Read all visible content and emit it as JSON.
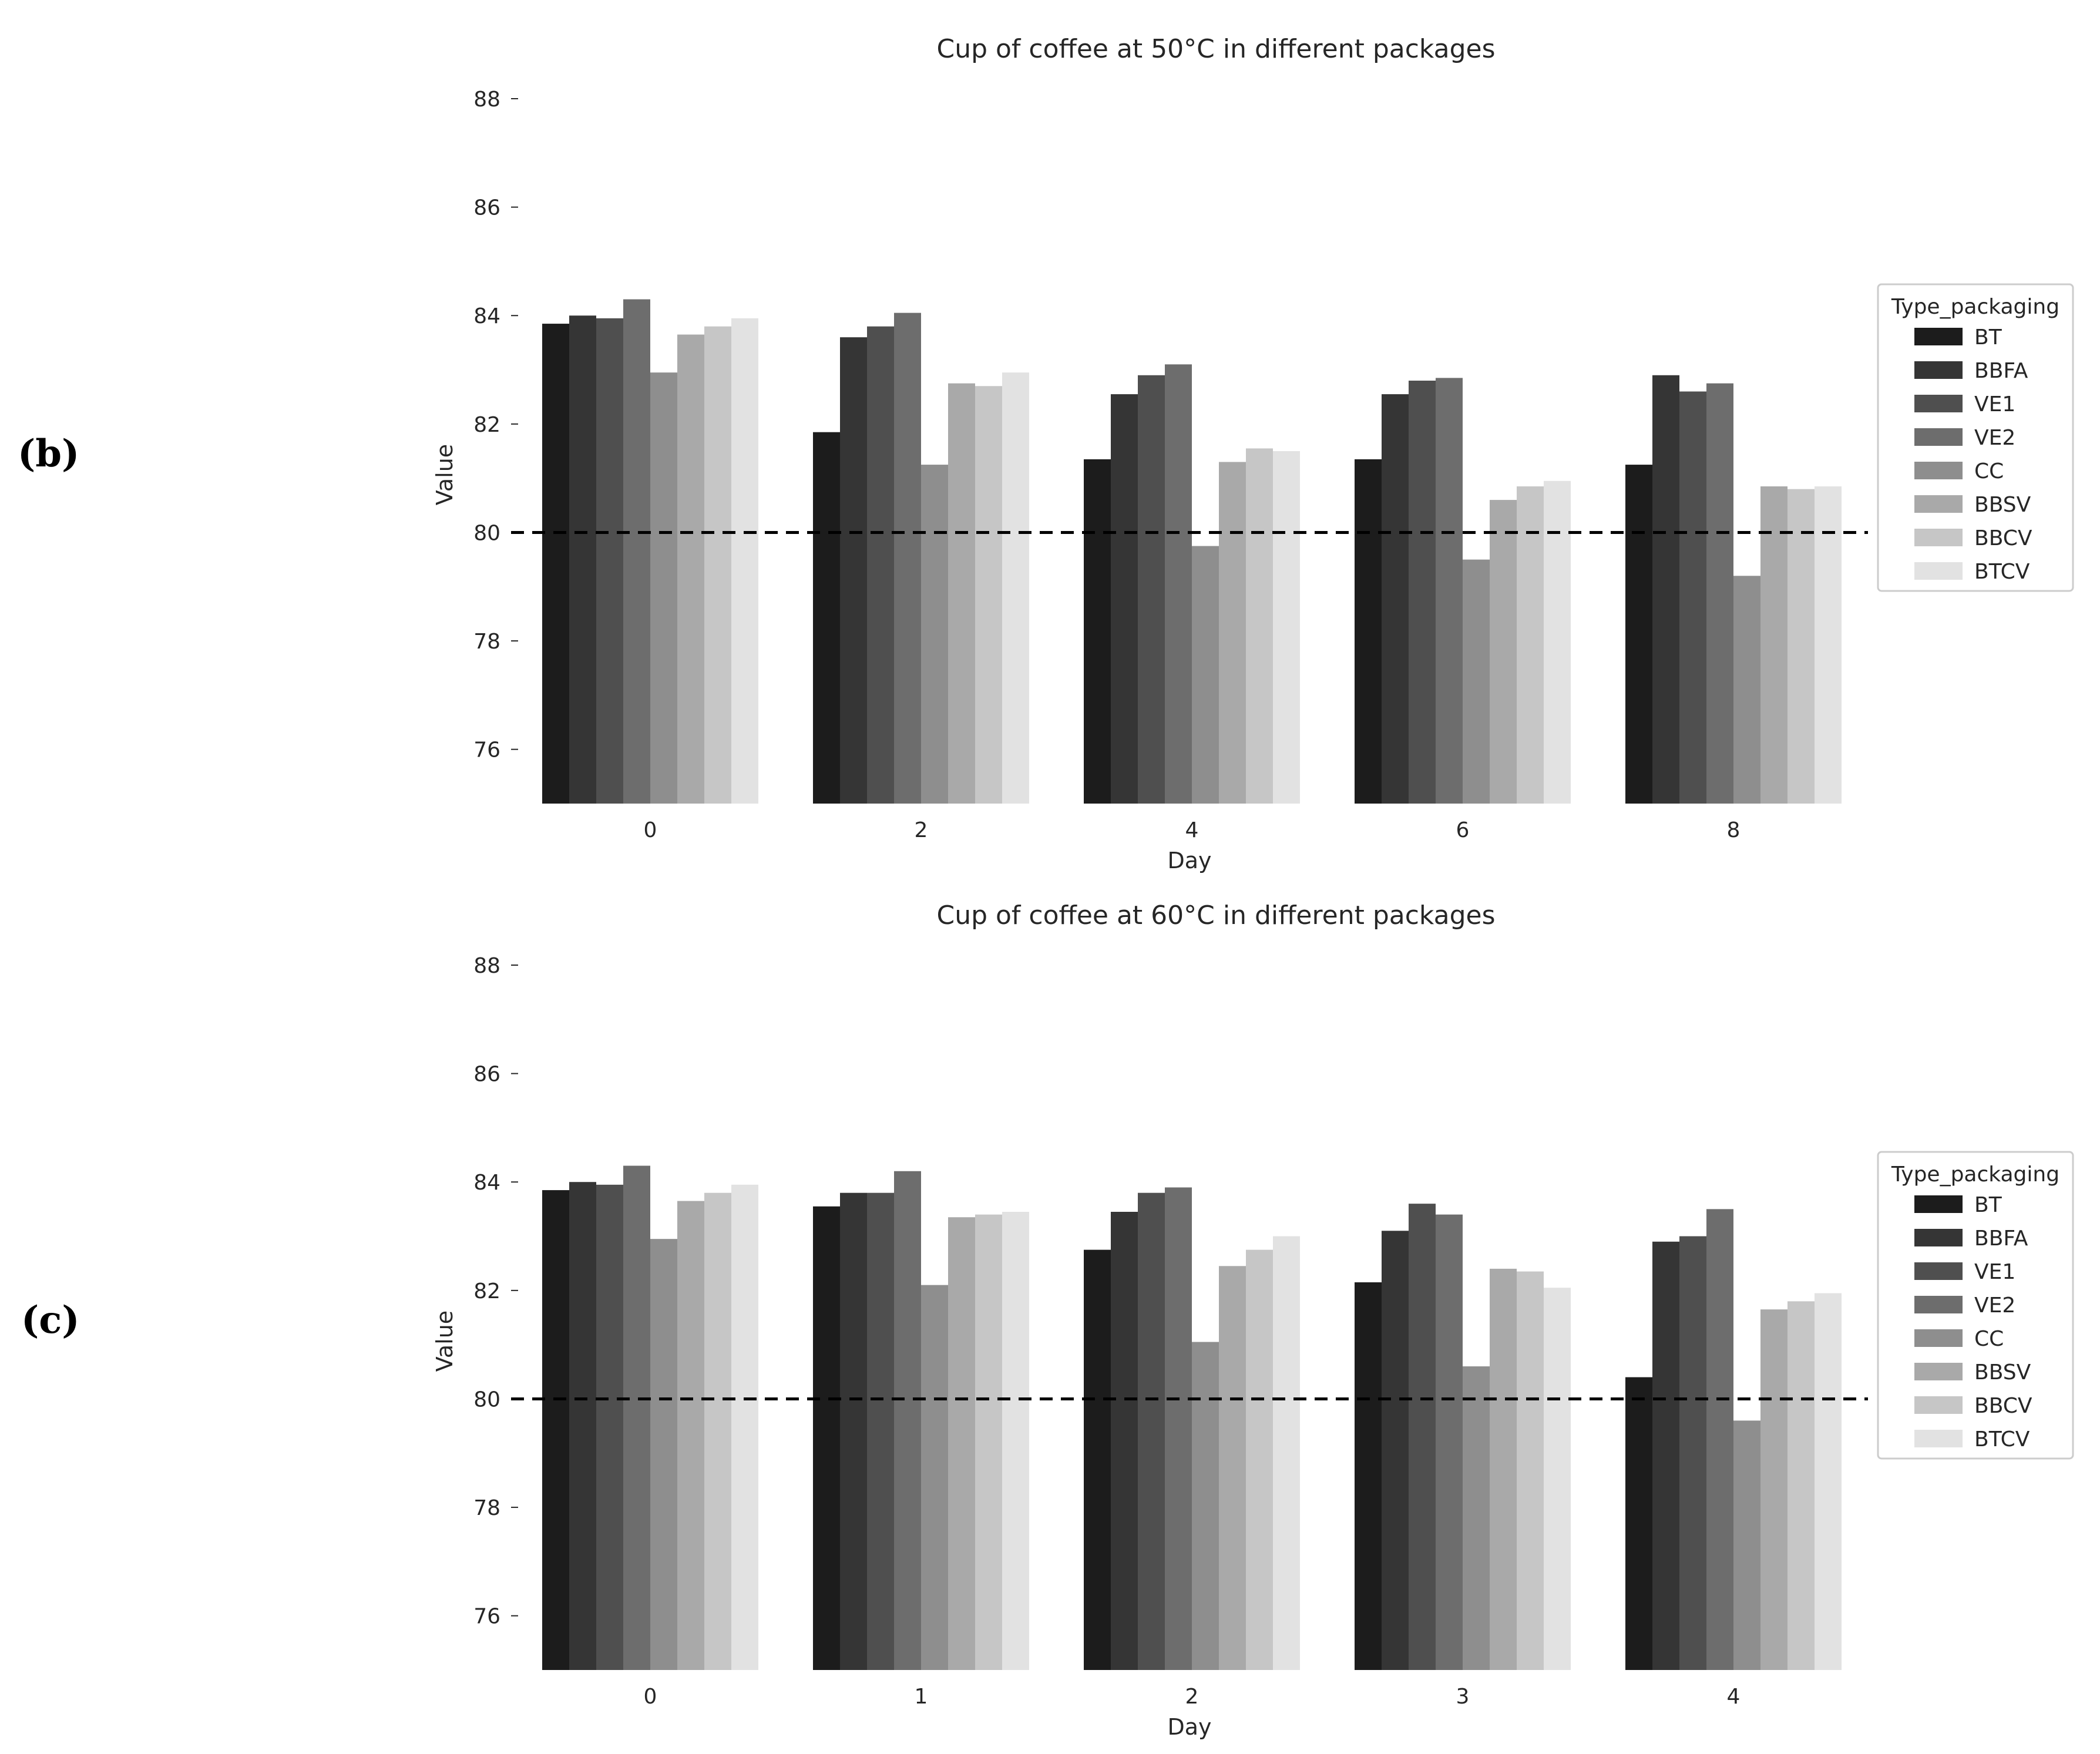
{
  "panels": {
    "b": "(b)",
    "c": "(c)"
  },
  "chart_data": [
    {
      "type": "bar",
      "title": "Cup of coffee at 50°C in different packages",
      "xlabel": "Day",
      "ylabel": "Value",
      "ylim": [
        75,
        88
      ],
      "yticks": [
        76,
        78,
        80,
        82,
        84,
        86,
        88
      ],
      "reference_line": 80,
      "legend": {
        "title": "Type_packaging",
        "placement": "right"
      },
      "categories": [
        "0",
        "2",
        "4",
        "6",
        "8"
      ],
      "series": [
        {
          "name": "BT",
          "color": "#1c1c1c",
          "values": [
            83.85,
            81.85,
            81.35,
            81.35,
            81.25
          ]
        },
        {
          "name": "BBFA",
          "color": "#353535",
          "values": [
            84.0,
            83.6,
            82.55,
            82.55,
            82.9
          ]
        },
        {
          "name": "VE1",
          "color": "#4f4f4f",
          "values": [
            83.95,
            83.8,
            82.9,
            82.8,
            82.6
          ]
        },
        {
          "name": "VE2",
          "color": "#6d6d6d",
          "values": [
            84.3,
            84.05,
            83.1,
            82.85,
            82.75
          ]
        },
        {
          "name": "CC",
          "color": "#8e8e8e",
          "values": [
            82.95,
            81.25,
            79.75,
            79.5,
            79.2
          ]
        },
        {
          "name": "BBSV",
          "color": "#a9a9a9",
          "values": [
            83.65,
            82.75,
            81.3,
            80.6,
            80.85
          ]
        },
        {
          "name": "BBCV",
          "color": "#c6c6c6",
          "values": [
            83.8,
            82.7,
            81.55,
            80.85,
            80.8
          ]
        },
        {
          "name": "BTCV",
          "color": "#e2e2e2",
          "values": [
            83.95,
            82.95,
            81.5,
            80.95,
            80.85
          ]
        }
      ]
    },
    {
      "type": "bar",
      "title": "Cup of coffee at 60°C in different packages",
      "xlabel": "Day",
      "ylabel": "Value",
      "ylim": [
        75,
        88
      ],
      "yticks": [
        76,
        78,
        80,
        82,
        84,
        86,
        88
      ],
      "reference_line": 80,
      "legend": {
        "title": "Type_packaging",
        "placement": "right"
      },
      "categories": [
        "0",
        "1",
        "2",
        "3",
        "4"
      ],
      "series": [
        {
          "name": "BT",
          "color": "#1c1c1c",
          "values": [
            83.85,
            83.55,
            82.75,
            82.15,
            80.4
          ]
        },
        {
          "name": "BBFA",
          "color": "#353535",
          "values": [
            84.0,
            83.8,
            83.45,
            83.1,
            82.9
          ]
        },
        {
          "name": "VE1",
          "color": "#4f4f4f",
          "values": [
            83.95,
            83.8,
            83.8,
            83.6,
            83.0
          ]
        },
        {
          "name": "VE2",
          "color": "#6d6d6d",
          "values": [
            84.3,
            84.2,
            83.9,
            83.4,
            83.5
          ]
        },
        {
          "name": "CC",
          "color": "#8e8e8e",
          "values": [
            82.95,
            82.1,
            81.05,
            80.6,
            79.6
          ]
        },
        {
          "name": "BBSV",
          "color": "#a9a9a9",
          "values": [
            83.65,
            83.35,
            82.45,
            82.4,
            81.65
          ]
        },
        {
          "name": "BBCV",
          "color": "#c6c6c6",
          "values": [
            83.8,
            83.4,
            82.75,
            82.35,
            81.8
          ]
        },
        {
          "name": "BTCV",
          "color": "#e2e2e2",
          "values": [
            83.95,
            83.45,
            83.0,
            82.05,
            81.95
          ]
        }
      ]
    }
  ]
}
